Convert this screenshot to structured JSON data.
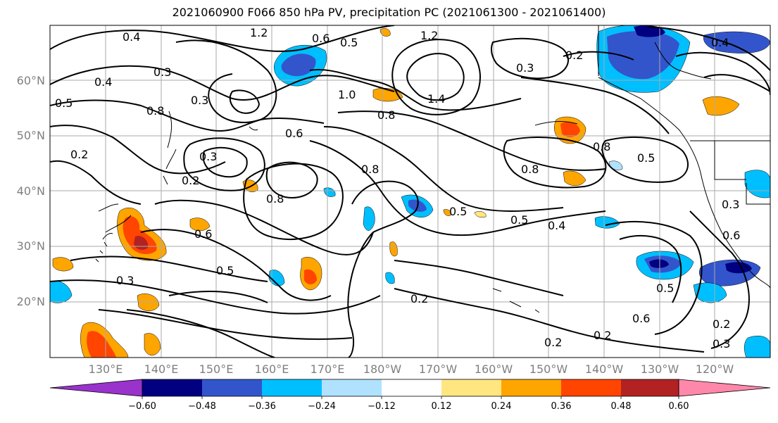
{
  "title": "2021060900 F066 850 hPa PV, precipitation PC (2021061300 - 2021061400)",
  "lat_labels": [
    "60°N",
    "50°N",
    "40°N",
    "30°N",
    "20°N"
  ],
  "lon_labels": [
    "130°E",
    "140°E",
    "150°E",
    "160°E",
    "170°E",
    "180°W",
    "170°W",
    "160°W",
    "150°W",
    "140°W",
    "130°W",
    "120°W"
  ],
  "contour_labels": [
    "0.4",
    "1.2",
    "0.5",
    "1.2",
    "0.3",
    "0.6",
    "0.2",
    "0.4",
    "0.3",
    "0.4",
    "0.5",
    "1.0",
    "1.4",
    "0.3",
    "0.8",
    "0.8",
    "0.6",
    "0.8",
    "0.5",
    "0.2",
    "0.2",
    "0.3",
    "0.8",
    "0.8",
    "0.8",
    "0.5",
    "0.3",
    "0.5",
    "0.4",
    "0.6",
    "0.5",
    "0.3",
    "0.2",
    "0.6",
    "0.2",
    "0.2",
    "0.2",
    "0.3",
    "0.6",
    "0.5"
  ],
  "colorbar": {
    "tick_labels": [
      "−0.60",
      "−0.48",
      "−0.36",
      "−0.24",
      "−0.12",
      "0.12",
      "0.24",
      "0.36",
      "0.48",
      "0.60"
    ],
    "colors": [
      "#9933cc",
      "#000080",
      "#3355cc",
      "#00bfff",
      "#b0e2ff",
      "#ffffff",
      "#ffe680",
      "#ffa500",
      "#ff4500",
      "#b22222",
      "#ff88aa"
    ]
  },
  "colors": {
    "grid": "#aaaaaa",
    "contour": "#000000",
    "coast": "#000000"
  }
}
